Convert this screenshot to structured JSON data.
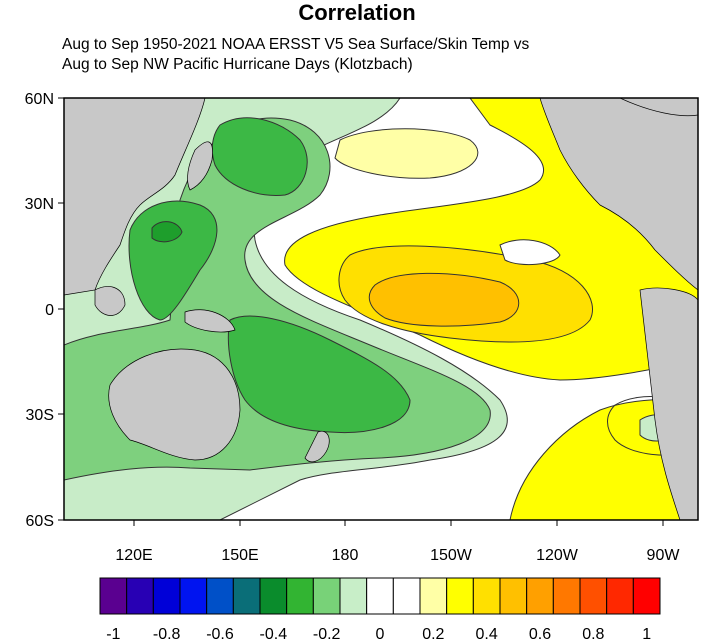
{
  "title": "Correlation",
  "subtitle_lines": [
    "Aug to Sep 1950-2021 NOAA ERSST V5 Sea Surface/Skin Temp vs",
    "Aug to Sep NW Pacific Hurricane Days (Klotzbach)"
  ],
  "map": {
    "lat_labels": [
      "60N",
      "30N",
      "0",
      "30S",
      "60S"
    ],
    "lon_labels": [
      "120E",
      "150E",
      "180",
      "150W",
      "120W",
      "90W"
    ],
    "land_color": "#c8c8c8",
    "ocean_regions": [
      {
        "name": "strong-negative-core",
        "level": -0.4,
        "color": "#1e9e2c"
      },
      {
        "name": "negative-2",
        "level": -0.3,
        "color": "#3cb845"
      },
      {
        "name": "negative-1",
        "level": -0.2,
        "color": "#7ed07e"
      },
      {
        "name": "weak-negative",
        "level": -0.1,
        "color": "#c8ecc8"
      },
      {
        "name": "weak-positive",
        "level": 0.1,
        "color": "#ffffa6"
      },
      {
        "name": "positive-1",
        "level": 0.2,
        "color": "#ffff00"
      },
      {
        "name": "positive-2",
        "level": 0.3,
        "color": "#ffe000"
      },
      {
        "name": "positive-3",
        "level": 0.4,
        "color": "#ffc000"
      }
    ]
  },
  "colorbar": {
    "colors": [
      "#5a0090",
      "#2800b4",
      "#0000d8",
      "#0014f0",
      "#0050c8",
      "#0a6e78",
      "#0a8c2c",
      "#32b432",
      "#78d278",
      "#c8eec8",
      "#ffffff",
      "#ffffff",
      "#ffffa6",
      "#ffff00",
      "#ffe000",
      "#ffc000",
      "#ffa000",
      "#ff7800",
      "#ff5000",
      "#ff2800",
      "#ff0000"
    ],
    "tick_labels": [
      "-1",
      "-0.8",
      "-0.6",
      "-0.4",
      "-0.2",
      "0",
      "0.2",
      "0.4",
      "0.6",
      "0.8",
      "1"
    ],
    "ticks": [
      -1,
      -0.8,
      -0.6,
      -0.4,
      -0.2,
      0,
      0.2,
      0.4,
      0.6,
      0.8,
      1
    ]
  }
}
